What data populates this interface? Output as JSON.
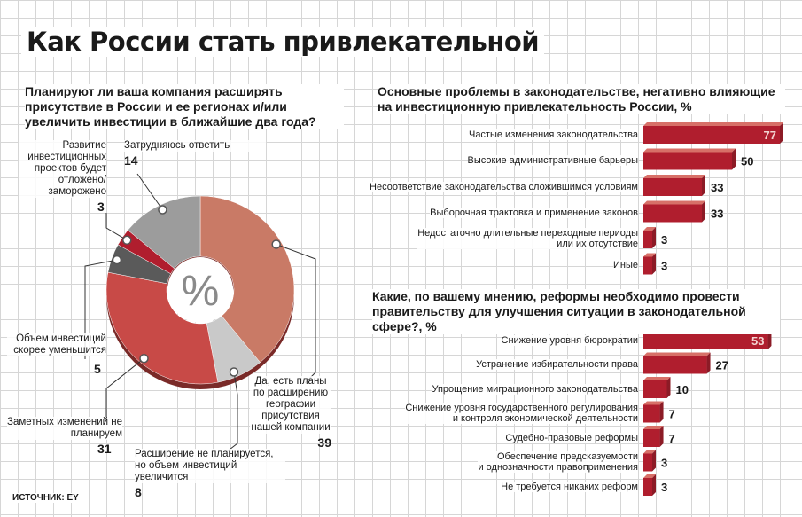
{
  "title": "Как России стать привлекательной",
  "source": "ИСТОЧНИК: EY",
  "colors": {
    "red_dark": "#b01e2e",
    "red_mid": "#c84a47",
    "salmon": "#c97a66",
    "gray_light": "#c9c9c9",
    "gray_mid": "#9c9c9c",
    "gray_dark": "#5a5a5a",
    "maroon": "#8c1b26"
  },
  "chart_data": [
    {
      "type": "pie",
      "title": "Планируют ли ваша компания расширять присутствие в России и ее регионах и/или увеличить инвестиции в ближайшие два года?",
      "center_label": "%",
      "slices": [
        {
          "label": "Да, есть планы по расширению географии присутствия нашей компании",
          "value": 39
        },
        {
          "label": "Расширение не планируется, но объем инвестиций увеличится",
          "value": 8
        },
        {
          "label": "Заметных изменений не планируем",
          "value": 31
        },
        {
          "label": "Объем инвестиций скорее уменьшится",
          "value": 5
        },
        {
          "label": "Развитие инвестиционных проектов будет отложено/ заморожено",
          "value": 3
        },
        {
          "label": "Затрудняюсь ответить",
          "value": 14
        }
      ]
    },
    {
      "type": "bar",
      "orientation": "horizontal",
      "title": "Основные проблемы в законодательстве, негативно влияющие на инвестиционную привлекательность России, %",
      "categories": [
        "Частые изменения законодательства",
        "Высокие административные барьеры",
        "Несоответствие законодательства сложившимся условиям",
        "Выборочная трактовка и применение законов",
        "Недостаточно длительные переходные периоды\nили их отсутствие",
        "Иные"
      ],
      "values": [
        77,
        50,
        33,
        33,
        3,
        3
      ]
    },
    {
      "type": "bar",
      "orientation": "horizontal",
      "title": "Какие, по вашему мнению, реформы необходимо провести правительству для улучшения ситуации в законодательной сфере?, %",
      "categories": [
        "Снижение уровня бюрократии",
        "Устранение избирательности права",
        "Упрощение миграционного законодательства",
        "Снижение уровня государственного регулирования\nи контроля экономической деятельности",
        "Судебно-правовые реформы",
        "Обеспечение предсказуемости\nи однозначности правоприменения",
        "Не требуется никаких реформ"
      ],
      "values": [
        53,
        27,
        10,
        7,
        7,
        3,
        3
      ]
    }
  ]
}
